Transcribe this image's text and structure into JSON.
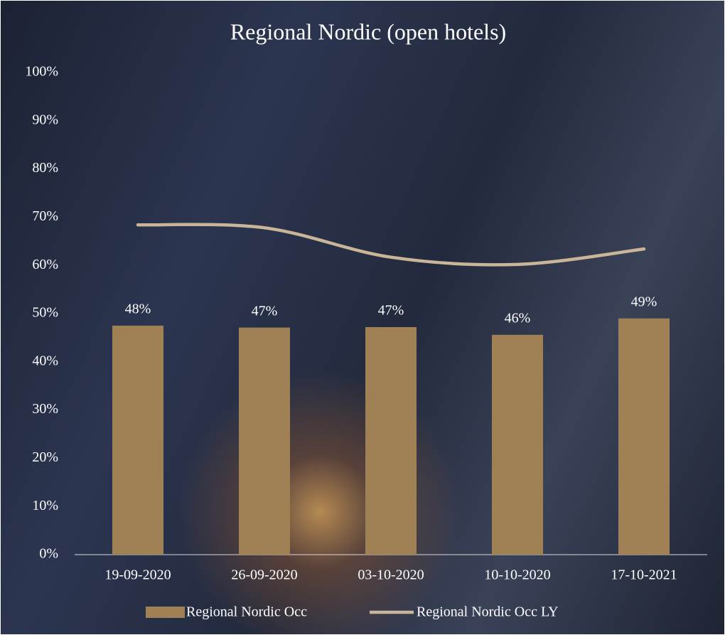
{
  "chart_data": {
    "type": "bar-line",
    "title": "Regional Nordic (open hotels)",
    "categories": [
      "19-09-2020",
      "26-09-2020",
      "03-10-2020",
      "10-10-2020",
      "17-10-2021"
    ],
    "series": [
      {
        "name": "Regional Nordic Occ",
        "type": "bar",
        "color": "#a08155",
        "values": [
          47.5,
          47.1,
          47.2,
          45.6,
          49.0
        ],
        "value_labels": [
          "48%",
          "47%",
          "47%",
          "46%",
          "49%"
        ]
      },
      {
        "name": "Regional Nordic Occ LY",
        "type": "line",
        "color": "#c9b598",
        "values": [
          68.4,
          67.8,
          61.7,
          60.2,
          63.4
        ]
      }
    ],
    "ylim": [
      0,
      100
    ],
    "yticks": [
      {
        "value": 0,
        "label": "0%"
      },
      {
        "value": 10,
        "label": "10%"
      },
      {
        "value": 20,
        "label": "20%"
      },
      {
        "value": 30,
        "label": "30%"
      },
      {
        "value": 40,
        "label": "40%"
      },
      {
        "value": 50,
        "label": "50%"
      },
      {
        "value": 60,
        "label": "60%"
      },
      {
        "value": 70,
        "label": "70%"
      },
      {
        "value": 80,
        "label": "80%"
      },
      {
        "value": 90,
        "label": "90%"
      },
      {
        "value": 100,
        "label": "100%"
      }
    ]
  }
}
